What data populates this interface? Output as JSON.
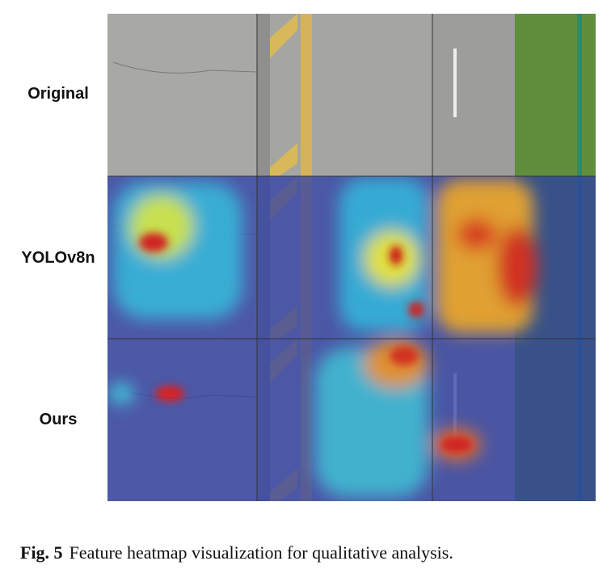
{
  "figure": {
    "rows": [
      "Original",
      "YOLOv8n",
      "Ours"
    ],
    "caption": {
      "label": "Fig. 5",
      "text": "Feature heatmap visualization for qualitative analysis."
    }
  }
}
